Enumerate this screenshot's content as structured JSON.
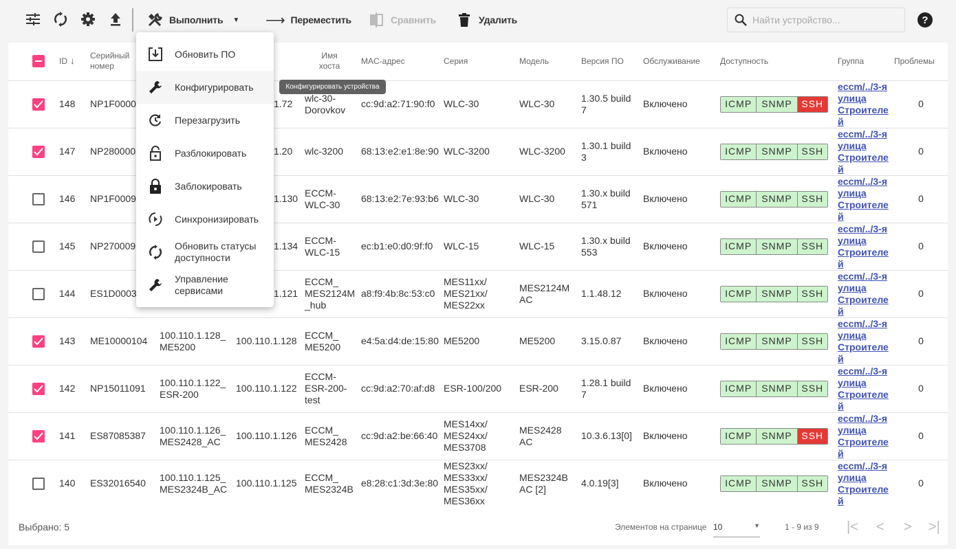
{
  "toolbar": {
    "icons": [
      "filter-icon",
      "refresh-icon",
      "gear-icon",
      "upload-icon"
    ],
    "execute_label": "Выполнить",
    "move_label": "Переместить",
    "compare_label": "Сравнить",
    "delete_label": "Удалить",
    "search_placeholder": "Найти устройство...",
    "help_label": "?"
  },
  "menu": {
    "items": [
      {
        "label": "Обновить ПО",
        "icon": "firmware-update-icon"
      },
      {
        "label": "Конфигурировать",
        "icon": "wrench-icon",
        "highlighted": true
      },
      {
        "label": "Перезагрузить",
        "icon": "restart-icon"
      },
      {
        "label": "Разблокировать",
        "icon": "unlock-icon"
      },
      {
        "label": "Заблокировать",
        "icon": "lock-icon"
      },
      {
        "label": "Синхронизировать",
        "icon": "sync-icon"
      },
      {
        "label": "Обновить статусы доступности",
        "icon": "refresh-icon"
      },
      {
        "label": "Управление сервисами",
        "icon": "wrench-icon"
      }
    ]
  },
  "tooltip": "Конфигурировать устройства",
  "table": {
    "headers": [
      "",
      "ID",
      "Серийный номер",
      "",
      "",
      "Имя хоста",
      "MAC-адрес",
      "Серия",
      "Модель",
      "Версия ПО",
      "Обслуживание",
      "Доступность",
      "Группа",
      "Проблемы"
    ],
    "sort_indicator": "↓",
    "rows": [
      {
        "checked": true,
        "id": "148",
        "serial": "NP1F0000",
        "name": "",
        "ip": "1.72",
        "host": "wlc-30-Dorovkov",
        "mac": "cc:9d:a2:71:90:f0",
        "series": "WLC-30",
        "model": "WLC-30",
        "version": "1.30.5 build 7",
        "maint": "Включено",
        "avail": [
          {
            "l": "ICMP",
            "ok": true
          },
          {
            "l": "SNMP",
            "ok": true
          },
          {
            "l": "SSH",
            "ok": false
          }
        ],
        "group": "eccm/../3-я улица Строителей",
        "problems": "0"
      },
      {
        "checked": true,
        "id": "147",
        "serial": "NP280000",
        "name": "",
        "ip": "1.20",
        "host": "wlc-3200",
        "mac": "68:13:e2:e1:8e:90",
        "series": "WLC-3200",
        "model": "WLC-3200",
        "version": "1.30.1 build 3",
        "maint": "Включено",
        "avail": [
          {
            "l": "ICMP",
            "ok": true
          },
          {
            "l": "SNMP",
            "ok": true
          },
          {
            "l": "SSH",
            "ok": true
          }
        ],
        "group": "eccm/../3-я улица Строителей",
        "problems": "0"
      },
      {
        "checked": false,
        "id": "146",
        "serial": "NP1F0009",
        "name": "",
        "ip": "1.130",
        "host": "ECCM-WLC-30",
        "mac": "68:13:e2:7e:93:b6",
        "series": "WLC-30",
        "model": "WLC-30",
        "version": "1.30.x build 571",
        "maint": "Включено",
        "avail": [
          {
            "l": "ICMP",
            "ok": true
          },
          {
            "l": "SNMP",
            "ok": true
          },
          {
            "l": "SSH",
            "ok": true
          }
        ],
        "group": "eccm/../3-я улица Строителей",
        "problems": "0"
      },
      {
        "checked": false,
        "id": "145",
        "serial": "NP270009",
        "name": "",
        "ip": "1.134",
        "host": "ECCM-WLC-15",
        "mac": "ec:b1:e0:d0:9f:f0",
        "series": "WLC-15",
        "model": "WLC-15",
        "version": "1.30.x build 553",
        "maint": "Включено",
        "avail": [
          {
            "l": "ICMP",
            "ok": true
          },
          {
            "l": "SNMP",
            "ok": true
          },
          {
            "l": "SSH",
            "ok": true
          }
        ],
        "group": "eccm/../3-я улица Строителей",
        "problems": "0"
      },
      {
        "checked": false,
        "id": "144",
        "serial": "ES1D0003",
        "name": "",
        "ip": "1.121",
        "host": "ECCM_ MES2124M _hub",
        "mac": "a8:f9:4b:8c:53:c0",
        "series": "MES11xx/ MES21xx/ MES22xx",
        "model": "MES2124M AC",
        "version": "1.1.48.12",
        "maint": "Включено",
        "avail": [
          {
            "l": "ICMP",
            "ok": true
          },
          {
            "l": "SNMP",
            "ok": true
          },
          {
            "l": "SSH",
            "ok": true
          }
        ],
        "group": "eccm/../3-я улица Строителей",
        "problems": "0"
      },
      {
        "checked": true,
        "id": "143",
        "serial": "ME10000104",
        "name": "100.110.1.128_ ME5200",
        "ip": "100.110.1.128",
        "host": "ECCM_ ME5200",
        "mac": "e4:5a:d4:de:15:80",
        "series": "ME5200",
        "model": "ME5200",
        "version": "3.15.0.87",
        "maint": "Включено",
        "avail": [
          {
            "l": "ICMP",
            "ok": true
          },
          {
            "l": "SNMP",
            "ok": true
          },
          {
            "l": "SSH",
            "ok": true
          }
        ],
        "group": "eccm/../3-я улица Строителей",
        "problems": "0"
      },
      {
        "checked": true,
        "id": "142",
        "serial": "NP15011091",
        "name": "100.110.1.122_ ESR-200",
        "ip": "100.110.1.122",
        "host": "ECCM-ESR-200-test",
        "mac": "cc:9d:a2:70:af:d8",
        "series": "ESR-100/200",
        "model": "ESR-200",
        "version": "1.28.1 build 7",
        "maint": "Включено",
        "avail": [
          {
            "l": "ICMP",
            "ok": true
          },
          {
            "l": "SNMP",
            "ok": true
          },
          {
            "l": "SSH",
            "ok": true
          }
        ],
        "group": "eccm/../3-я улица Строителей",
        "problems": "0"
      },
      {
        "checked": true,
        "id": "141",
        "serial": "ES87085387",
        "name": "100.110.1.126_ MES2428_AC",
        "ip": "100.110.1.126",
        "host": "ECCM_ MES2428",
        "mac": "cc:9d:a2:be:66:40",
        "series": "MES14xx/ MES24xx/ MES3708",
        "model": "MES2428 AC",
        "version": "10.3.6.13[0]",
        "maint": "Включено",
        "avail": [
          {
            "l": "ICMP",
            "ok": true
          },
          {
            "l": "SNMP",
            "ok": true
          },
          {
            "l": "SSH",
            "ok": false
          }
        ],
        "group": "eccm/../3-я улица Строителей",
        "problems": "0"
      },
      {
        "checked": false,
        "id": "140",
        "serial": "ES32016540",
        "name": "100.110.1.125_ MES2324B_AC",
        "ip": "100.110.1.125",
        "host": "ECCM_ MES2324B",
        "mac": "e8:28:c1:3d:3e:80",
        "series": "MES23xx/ MES33xx/ MES35xx/ MES36xx",
        "model": "MES2324B AC [2]",
        "version": "4.0.19[3]",
        "maint": "Включено",
        "avail": [
          {
            "l": "ICMP",
            "ok": true
          },
          {
            "l": "SNMP",
            "ok": true
          },
          {
            "l": "SSH",
            "ok": true
          }
        ],
        "group": "eccm/../3-я улица Строителей",
        "problems": "0"
      }
    ]
  },
  "footer": {
    "selected": "Выбрано: 5",
    "per_page_label": "Элементов на странице",
    "per_page_value": "10",
    "range": "1 - 9 из 9"
  },
  "colors": {
    "accent": "#ff4081",
    "link": "#3f51b5",
    "ok": "#cdf3cd",
    "fail": "#e53935"
  }
}
